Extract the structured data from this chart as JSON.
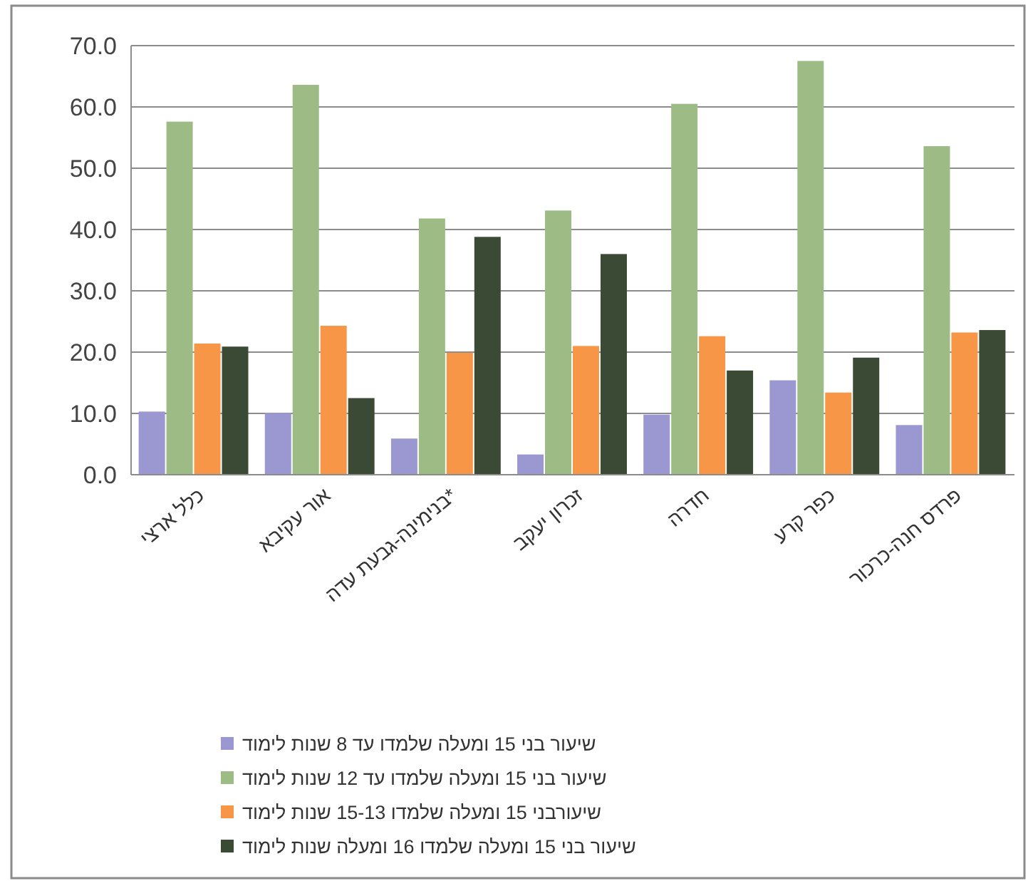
{
  "chart_data": {
    "type": "bar",
    "categories": [
      "כלל ארצי",
      "אור עקיבא",
      "בנימינה-גבעת עדה*",
      "זכרון יעקב",
      "חדרה",
      "כפר קרע",
      "פרדס חנה-כרכור"
    ],
    "series": [
      {
        "name": "שיעור בני 15 ומעלה שלמדו עד 8 שנות לימוד",
        "color": "#9b97d0",
        "values": [
          10.3,
          10.1,
          5.9,
          3.3,
          9.8,
          15.4,
          8.1
        ]
      },
      {
        "name": "שיעור בני 15 ומעלה שלמדו עד 12 שנות לימוד",
        "color": "#9dbb85",
        "values": [
          57.6,
          63.6,
          41.8,
          43.1,
          60.5,
          67.5,
          53.6
        ]
      },
      {
        "name": "שיעורבני 15 ומעלה שלמדו 15-13 שנות לימוד",
        "color": "#f79646",
        "values": [
          21.4,
          24.3,
          19.9,
          21.0,
          22.6,
          13.4,
          23.2
        ]
      },
      {
        "name": "שיעור בני 15 ומעלה שלמדו 16 ומעלה שנות לימוד",
        "color": "#3b4a35",
        "values": [
          20.9,
          12.5,
          38.8,
          36.0,
          17.0,
          19.1,
          23.6
        ]
      }
    ],
    "ylim": [
      0,
      70
    ],
    "yticks": [
      {
        "value": 0,
        "label": "0.0"
      },
      {
        "value": 10,
        "label": "10.0"
      },
      {
        "value": 20,
        "label": "20.0"
      },
      {
        "value": 30,
        "label": "30.0"
      },
      {
        "value": 40,
        "label": "40.0"
      },
      {
        "value": 50,
        "label": "50.0"
      },
      {
        "value": 60,
        "label": "60.0"
      },
      {
        "value": 70,
        "label": "70.0"
      }
    ],
    "grid": "y",
    "legend": "bottom"
  }
}
